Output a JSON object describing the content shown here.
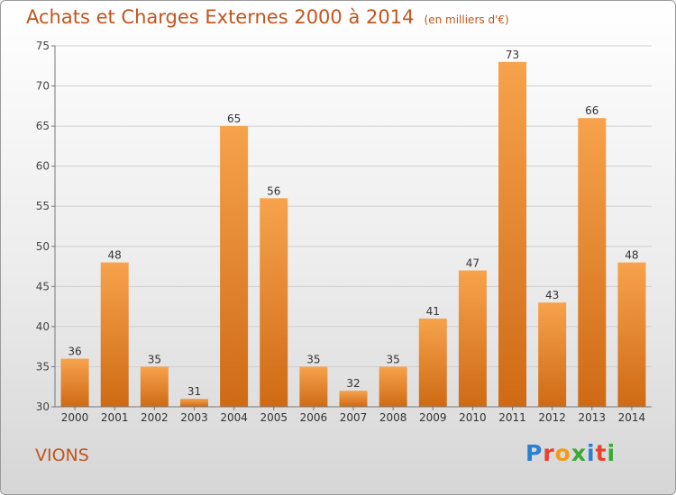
{
  "title": "Achats et Charges Externes 2000 à 2014",
  "unit": "(en milliers d'€)",
  "commune": "VIONS",
  "logo": {
    "text": "Proxiti",
    "colors": [
      "#2a7fd4",
      "#e8412c",
      "#f29b1b",
      "#3aaa35",
      "#2a7fd4",
      "#e8412c",
      "#3aaa35"
    ]
  },
  "chart_data": {
    "type": "bar",
    "title": "Achats et Charges Externes 2000 à 2014",
    "subtitle": "(en milliers d'€)",
    "categories": [
      "2000",
      "2001",
      "2002",
      "2003",
      "2004",
      "2005",
      "2006",
      "2007",
      "2008",
      "2009",
      "2010",
      "2011",
      "2012",
      "2013",
      "2014"
    ],
    "values": [
      36,
      48,
      35,
      31,
      65,
      56,
      35,
      32,
      35,
      41,
      47,
      73,
      43,
      66,
      48
    ],
    "ylim": [
      30,
      75
    ],
    "yticks": [
      30,
      35,
      40,
      45,
      50,
      55,
      60,
      65,
      70,
      75
    ],
    "grid": true,
    "bar_color": "#e8802a",
    "data_labels": true
  }
}
